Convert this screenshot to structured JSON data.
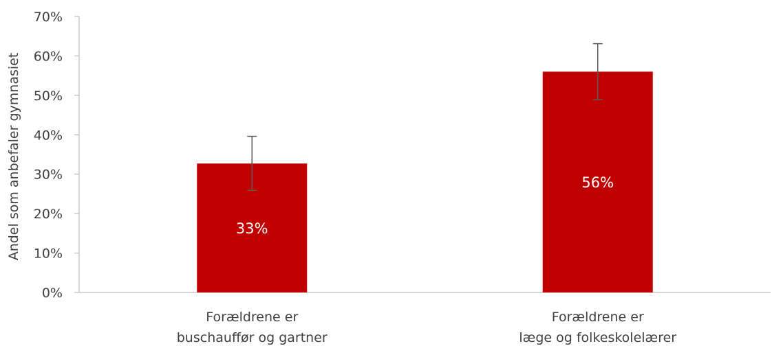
{
  "chart_data": {
    "type": "bar",
    "categories": [
      [
        "Forældrene er",
        "buschauffør og gartner"
      ],
      [
        "Forældrene er",
        "læge og folkeskolelærer"
      ]
    ],
    "values": [
      32.7,
      56.0
    ],
    "data_labels": [
      "33%",
      "56%"
    ],
    "error_bars": [
      {
        "low": 25.9,
        "high": 39.6
      },
      {
        "low": 48.9,
        "high": 63.1
      }
    ],
    "ylabel": "Andel som anbefaler gymnasiet",
    "xlabel": "",
    "title": "",
    "ylim": [
      0,
      70
    ],
    "yticks": [
      0,
      10,
      20,
      30,
      40,
      50,
      60,
      70
    ],
    "ytick_labels": [
      "0%",
      "10%",
      "20%",
      "30%",
      "40%",
      "50%",
      "60%",
      "70%"
    ],
    "grid": false,
    "legend": "none"
  },
  "colors": {
    "bar": "#c00000",
    "error_bar": "#595959",
    "axis": "#bfbfbf",
    "text": "#404040",
    "data_label": "#ffffff"
  }
}
